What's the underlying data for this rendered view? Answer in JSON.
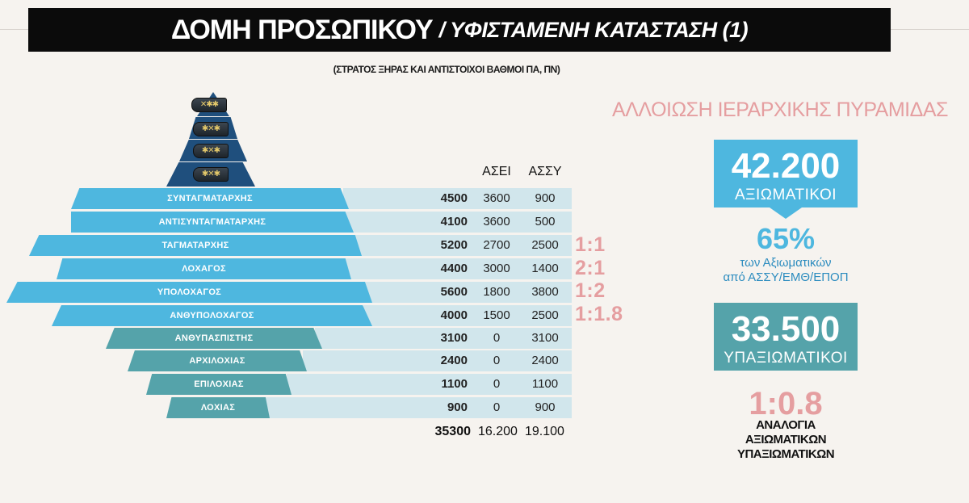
{
  "header": {
    "title": "ΔΟΜΗ ΠΡΟΣΩΠΙΚΟΥ",
    "title_sub": "/ ΥΦΙΣΤΑΜΕΝΗ ΚΑΤΑΣΤΑΣΗ (1)",
    "subtitle": "(ΣΤΡΑΤΟΣ ΞΗΡΑΣ ΚΑΙ ΑΝΤΙΣΤΟΙΧΟΙ ΒΑΘΜΟΙ ΠΑ, ΠΝ)"
  },
  "insignia": [
    "✕✱✱",
    "✱✕✱",
    "✱✕✱",
    "✱✕✱"
  ],
  "table": {
    "headers": {
      "asei": "ΑΣΕΙ",
      "assy": "ΑΣΣΥ"
    },
    "rows": [
      {
        "rank": "ΣΥΝΤΑΓΜΑΤΑΡΧΗΣ",
        "total": "4500",
        "asei": "3600",
        "assy": "900",
        "ratio": ""
      },
      {
        "rank": "ΑΝΤΙΣΥΝΤΑΓΜΑΤΑΡΧΗΣ",
        "total": "4100",
        "asei": "3600",
        "assy": "500",
        "ratio": ""
      },
      {
        "rank": "ΤΑΓΜΑΤΑΡΧΗΣ",
        "total": "5200",
        "asei": "2700",
        "assy": "2500",
        "ratio": "1:1"
      },
      {
        "rank": "ΛΟΧΑΓΟΣ",
        "total": "4400",
        "asei": "3000",
        "assy": "1400",
        "ratio": "2:1"
      },
      {
        "rank": "ΥΠΟΛΟΧΑΓΟΣ",
        "total": "5600",
        "asei": "1800",
        "assy": "3800",
        "ratio": "1:2"
      },
      {
        "rank": "ΑΝΘΥΠΟΛΟΧΑΓΟΣ",
        "total": "4000",
        "asei": "1500",
        "assy": "2500",
        "ratio": "1:1.8"
      },
      {
        "rank": "ΑΝΘΥΠΑΣΠΙΣΤΗΣ",
        "total": "3100",
        "asei": "0",
        "assy": "3100",
        "ratio": ""
      },
      {
        "rank": "ΑΡΧΙΛΟΧΙΑΣ",
        "total": "2400",
        "asei": "0",
        "assy": "2400",
        "ratio": ""
      },
      {
        "rank": "ΕΠΙΛΟΧΙΑΣ",
        "total": "1100",
        "asei": "0",
        "assy": "1100",
        "ratio": ""
      },
      {
        "rank": "ΛΟΧΙΑΣ",
        "total": "900",
        "asei": "0",
        "assy": "900",
        "ratio": ""
      }
    ],
    "sum": {
      "total": "35300",
      "asei": "16.200",
      "assy": "19.100"
    }
  },
  "side": {
    "title": "ΑΛΛΟΙΩΣΗ ΙΕΡΑΡΧΙΚΗΣ ΠΥΡΑΜΙΔΑΣ",
    "officers_value": "42.200",
    "officers_label": "ΑΞΙΩΜΑΤΙΚΟΙ",
    "pct_value": "65%",
    "pct_line1": "των Αξιωματικών",
    "pct_line2": "από ΑΣΣΥ/ΕΜΘ/ΕΠΟΠ",
    "nco_value": "33.500",
    "nco_label": "ΥΠΑΞΙΩΜΑΤΙΚΟΙ",
    "ratio_value": "1:0.8",
    "ratio_line1": "ΑΝΑΛΟΓΙΑ",
    "ratio_line2": "ΑΞΙΩΜΑΤΙΚΩΝ",
    "ratio_line3": "ΥΠΑΞΙΩΜΑΤΙΚΩΝ"
  },
  "colors": {
    "blue": "#4eb7df",
    "teal": "#55a3aa",
    "navy": "#1f4f7d",
    "pink": "#e59ea0",
    "row_bg": "#d1e6ec"
  }
}
